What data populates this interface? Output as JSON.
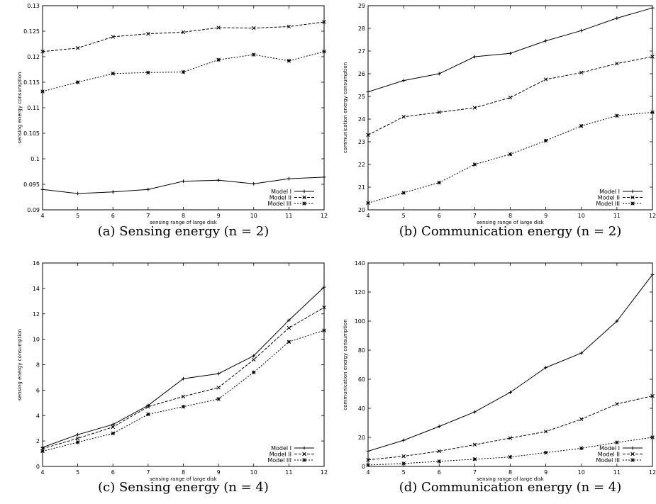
{
  "chart_data": [
    {
      "type": "line",
      "caption": "(a) Sensing energy (n = 2)",
      "xlabel": "sensing range of large disk",
      "ylabel": "sensing energy consumption",
      "xlim": [
        4,
        12
      ],
      "ylim": [
        0.09,
        0.13
      ],
      "xticks": [
        "4",
        "5",
        "6",
        "7",
        "8",
        "9",
        "10",
        "11",
        "12"
      ],
      "yticks": [
        "0.09",
        "0.095",
        "0.1",
        "0.105",
        "0.11",
        "0.115",
        "0.12",
        "0.125",
        "0.13"
      ],
      "x": [
        4,
        5,
        6,
        7,
        8,
        9,
        10,
        11,
        12
      ],
      "legend_position": "bottom-right",
      "series": [
        {
          "name": "Model I",
          "values": [
            0.094,
            0.0932,
            0.0935,
            0.094,
            0.0956,
            0.0958,
            0.0951,
            0.0961,
            0.0964
          ]
        },
        {
          "name": "Model II",
          "values": [
            0.121,
            0.1217,
            0.1239,
            0.1245,
            0.1248,
            0.1257,
            0.1256,
            0.1259,
            0.1268
          ]
        },
        {
          "name": "Model III",
          "values": [
            0.1132,
            0.115,
            0.1167,
            0.1169,
            0.117,
            0.1194,
            0.1204,
            0.1192,
            0.121
          ]
        }
      ]
    },
    {
      "type": "line",
      "caption": "(b) Communication energy (n = 2)",
      "xlabel": "sensing range of large disk",
      "ylabel": "communication energy consumption",
      "xlim": [
        4,
        12
      ],
      "ylim": [
        20,
        29
      ],
      "xticks": [
        "4",
        "5",
        "6",
        "7",
        "8",
        "9",
        "10",
        "11",
        "12"
      ],
      "yticks": [
        "20",
        "21",
        "22",
        "23",
        "24",
        "25",
        "26",
        "27",
        "28",
        "29"
      ],
      "x": [
        4,
        5,
        6,
        7,
        8,
        9,
        10,
        11,
        12
      ],
      "legend_position": "bottom-right",
      "series": [
        {
          "name": "Model I",
          "values": [
            25.2,
            25.7,
            26.0,
            26.75,
            26.9,
            27.45,
            27.9,
            28.45,
            28.9
          ]
        },
        {
          "name": "Model II",
          "values": [
            23.3,
            24.1,
            24.3,
            24.5,
            24.95,
            25.75,
            26.05,
            26.45,
            26.75
          ]
        },
        {
          "name": "Model III",
          "values": [
            20.3,
            20.75,
            21.2,
            22.0,
            22.45,
            23.05,
            23.7,
            24.15,
            24.3
          ]
        }
      ]
    },
    {
      "type": "line",
      "caption": "(c) Sensing energy (n = 4)",
      "xlabel": "sensing range of large disk",
      "ylabel": "sensing energy consumption",
      "xlim": [
        4,
        12
      ],
      "ylim": [
        0,
        16
      ],
      "xticks": [
        "4",
        "5",
        "6",
        "7",
        "8",
        "9",
        "10",
        "11",
        "12"
      ],
      "yticks": [
        "0",
        "2",
        "4",
        "6",
        "8",
        "10",
        "12",
        "14",
        "16"
      ],
      "x": [
        4,
        5,
        6,
        7,
        8,
        9,
        10,
        11,
        12
      ],
      "legend_position": "bottom-right",
      "series": [
        {
          "name": "Model I",
          "values": [
            1.5,
            2.5,
            3.3,
            4.8,
            6.9,
            7.3,
            8.7,
            11.5,
            14.1
          ]
        },
        {
          "name": "Model II",
          "values": [
            1.4,
            2.2,
            3.1,
            4.7,
            5.5,
            6.2,
            8.4,
            10.9,
            12.5
          ]
        },
        {
          "name": "Model III",
          "values": [
            1.2,
            1.9,
            2.6,
            4.1,
            4.7,
            5.3,
            7.4,
            9.8,
            10.7
          ]
        }
      ]
    },
    {
      "type": "line",
      "caption": "(d) Communication energy (n = 4)",
      "xlabel": "sensing range of large disk",
      "ylabel": "communication energy consumption",
      "xlim": [
        4,
        12
      ],
      "ylim": [
        0,
        140
      ],
      "xticks": [
        "4",
        "5",
        "6",
        "7",
        "8",
        "9",
        "10",
        "11",
        "12"
      ],
      "yticks": [
        "0",
        "20",
        "40",
        "60",
        "80",
        "100",
        "120",
        "140"
      ],
      "x": [
        4,
        5,
        6,
        7,
        8,
        9,
        10,
        11,
        12
      ],
      "legend_position": "bottom-right",
      "series": [
        {
          "name": "Model I",
          "values": [
            10.5,
            18,
            27.5,
            37.5,
            51,
            68,
            78,
            100,
            132
          ]
        },
        {
          "name": "Model II",
          "values": [
            4.5,
            7,
            10.5,
            15,
            19.5,
            24,
            32.5,
            43,
            48.5
          ]
        },
        {
          "name": "Model III",
          "values": [
            1,
            2,
            3.5,
            5,
            6.5,
            9.5,
            12.5,
            16.5,
            20
          ]
        }
      ]
    }
  ]
}
